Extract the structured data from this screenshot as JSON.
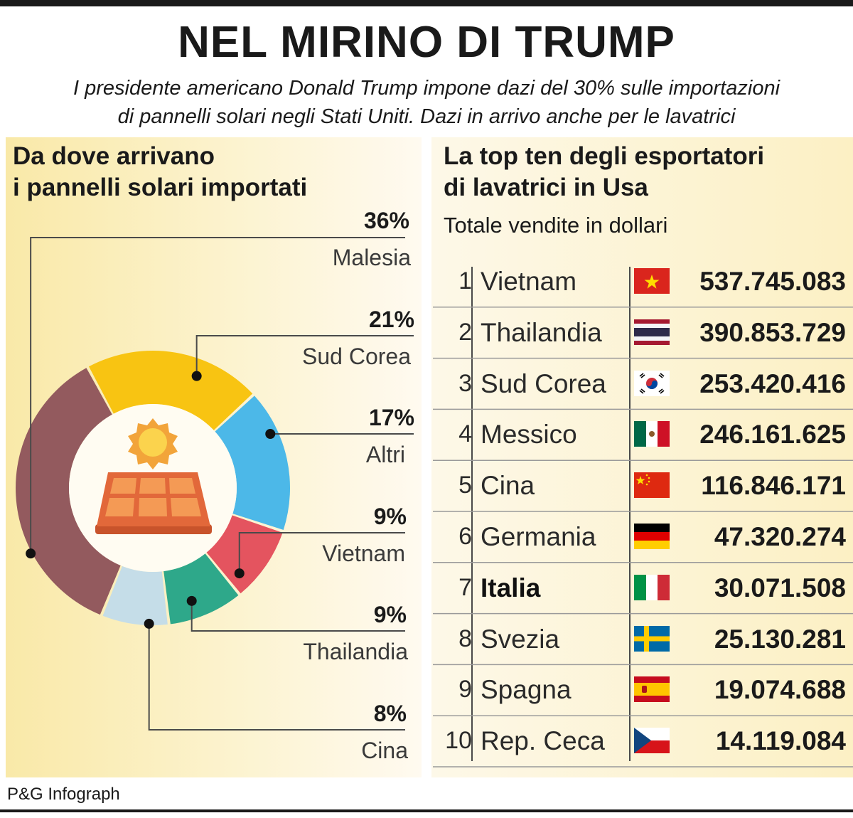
{
  "title": "NEL MIRINO DI TRUMP",
  "subtitle": "I presidente americano Donald Trump impone dazi del 30% sulle importazioni\ndi pannelli solari negli Stati Uniti. Dazi in arrivo anche per le lavatrici",
  "credit": "P&G Infograph",
  "chart_data": [
    {
      "type": "pie",
      "title": "Da dove arrivano\ni pannelli solari importati",
      "categories": [
        "Malesia",
        "Sud Corea",
        "Altri",
        "Vietnam",
        "Thailandia",
        "Cina"
      ],
      "values": [
        36,
        21,
        17,
        9,
        9,
        8
      ],
      "labels": [
        "36%",
        "21%",
        "17%",
        "9%",
        "9%",
        "8%"
      ],
      "colors": [
        "#935a5e",
        "#f8c412",
        "#4cb8e8",
        "#e4545f",
        "#2ea88a",
        "#c5dde8"
      ],
      "icons": [
        "sun-icon",
        "solar-panel-icon"
      ]
    },
    {
      "type": "table",
      "title": "La top ten degli esportatori\ndi lavatrici in Usa",
      "subtitle": "Totale vendite in dollari",
      "rows": [
        {
          "rank": "1",
          "country": "Vietnam",
          "value": "537.745.083",
          "flag": "vietnam-flag-icon"
        },
        {
          "rank": "2",
          "country": "Thailandia",
          "value": "390.853.729",
          "flag": "thailand-flag-icon"
        },
        {
          "rank": "3",
          "country": "Sud Corea",
          "value": "253.420.416",
          "flag": "south-korea-flag-icon"
        },
        {
          "rank": "4",
          "country": "Messico",
          "value": "246.161.625",
          "flag": "mexico-flag-icon"
        },
        {
          "rank": "5",
          "country": "Cina",
          "value": "116.846.171",
          "flag": "china-flag-icon"
        },
        {
          "rank": "6",
          "country": "Germania",
          "value": "47.320.274",
          "flag": "germany-flag-icon"
        },
        {
          "rank": "7",
          "country": "Italia",
          "value": "30.071.508",
          "flag": "italy-flag-icon",
          "highlight": true
        },
        {
          "rank": "8",
          "country": "Svezia",
          "value": "25.130.281",
          "flag": "sweden-flag-icon"
        },
        {
          "rank": "9",
          "country": "Spagna",
          "value": "19.074.688",
          "flag": "spain-flag-icon"
        },
        {
          "rank": "10",
          "country": "Rep. Ceca",
          "value": "14.119.084",
          "flag": "czech-flag-icon"
        }
      ]
    }
  ]
}
